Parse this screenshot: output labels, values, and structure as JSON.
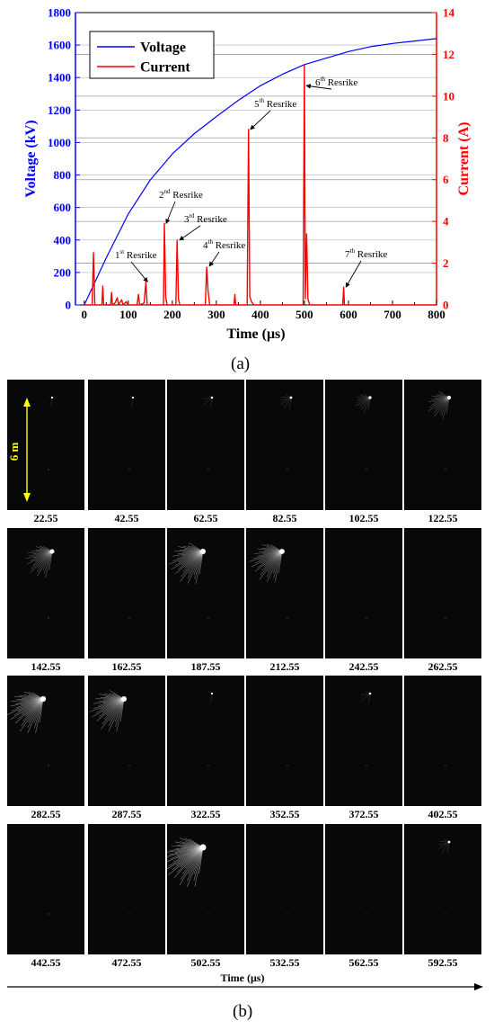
{
  "panel_a": {
    "label": "(a)",
    "label_letter": "a",
    "annotations": [
      {
        "sup": "st",
        "t": 140,
        "i": 1.1
      },
      {
        "sup": "nd",
        "t": 182,
        "i": 3.9
      },
      {
        "sup": "rd",
        "t": 212,
        "i": 3.1
      },
      {
        "sup": "th",
        "t": 280,
        "i": 1.85
      },
      {
        "sup": "th",
        "t": 373,
        "i": 8.4
      },
      {
        "sup": "th",
        "t": 500,
        "i": 10.5
      },
      {
        "sup": "th",
        "t": 590,
        "i": 0.85
      }
    ]
  },
  "chart_data": {
    "type": "line",
    "x": {
      "label": "Time (μs)",
      "range": [
        -20,
        800
      ],
      "ticks": [
        0,
        100,
        200,
        300,
        400,
        500,
        600,
        700,
        800
      ]
    },
    "y_left": {
      "label": "Voltage (kV)",
      "range": [
        0,
        1800
      ],
      "ticks": [
        0,
        200,
        400,
        600,
        800,
        1000,
        1200,
        1400,
        1600,
        1800
      ],
      "color": "#0000ff"
    },
    "y_right": {
      "label": "Current (A)",
      "range": [
        0,
        14
      ],
      "ticks": [
        0,
        2,
        4,
        6,
        8,
        10,
        12,
        14
      ],
      "color": "#ff0000"
    },
    "grid": true,
    "legend": {
      "position": "top-left",
      "entries": [
        "Voltage",
        "Current"
      ]
    },
    "series": [
      {
        "name": "Voltage",
        "axis": "left",
        "color": "#0000ff",
        "points": [
          [
            0,
            0
          ],
          [
            50,
            290
          ],
          [
            100,
            560
          ],
          [
            150,
            770
          ],
          [
            200,
            930
          ],
          [
            250,
            1055
          ],
          [
            300,
            1160
          ],
          [
            350,
            1260
          ],
          [
            400,
            1350
          ],
          [
            450,
            1420
          ],
          [
            500,
            1480
          ],
          [
            550,
            1520
          ],
          [
            600,
            1560
          ],
          [
            650,
            1590
          ],
          [
            700,
            1610
          ],
          [
            750,
            1625
          ],
          [
            800,
            1640
          ]
        ]
      },
      {
        "name": "Current",
        "axis": "right",
        "color": "#ff0000",
        "points": [
          [
            0,
            0
          ],
          [
            18,
            0
          ],
          [
            21,
            2.5
          ],
          [
            24,
            0
          ],
          [
            40,
            0
          ],
          [
            42,
            0.9
          ],
          [
            44,
            0
          ],
          [
            60,
            0
          ],
          [
            62,
            0.6
          ],
          [
            64,
            0
          ],
          [
            70,
            0.1
          ],
          [
            75,
            0.35
          ],
          [
            78,
            0
          ],
          [
            85,
            0.25
          ],
          [
            88,
            0
          ],
          [
            95,
            0.15
          ],
          [
            100,
            0
          ],
          [
            120,
            0
          ],
          [
            123,
            0.5
          ],
          [
            126,
            0
          ],
          [
            136,
            0.1
          ],
          [
            140,
            1.1
          ],
          [
            143,
            0
          ],
          [
            180,
            0
          ],
          [
            182,
            3.9
          ],
          [
            185,
            0.4
          ],
          [
            188,
            0
          ],
          [
            208,
            0
          ],
          [
            211,
            3.1
          ],
          [
            214,
            0.3
          ],
          [
            217,
            0
          ],
          [
            275,
            0
          ],
          [
            278,
            1.8
          ],
          [
            281,
            0.7
          ],
          [
            285,
            0
          ],
          [
            340,
            0
          ],
          [
            342,
            0.5
          ],
          [
            344,
            0
          ],
          [
            370,
            0
          ],
          [
            373,
            8.4
          ],
          [
            376,
            0.4
          ],
          [
            380,
            0.15
          ],
          [
            385,
            0
          ],
          [
            497,
            0
          ],
          [
            500,
            11.5
          ],
          [
            502,
            0.3
          ],
          [
            505,
            3.4
          ],
          [
            508,
            0.3
          ],
          [
            512,
            0
          ],
          [
            587,
            0
          ],
          [
            589,
            0.85
          ],
          [
            591,
            0
          ],
          [
            800,
            0
          ]
        ]
      }
    ],
    "annotation_text": [
      "Resrike",
      "Resrike",
      "Resrike",
      "Resrike",
      "Resrike",
      "Resrike",
      "Resrike"
    ]
  },
  "panel_b": {
    "label": "(b)",
    "label_letter": "b",
    "scale_label": "6 m",
    "axis_label": "Time (μs)",
    "frames": [
      {
        "time": "22.55",
        "b": 0.05
      },
      {
        "time": "42.55",
        "b": 0.05
      },
      {
        "time": "62.55",
        "b": 0.1
      },
      {
        "time": "82.55",
        "b": 0.15
      },
      {
        "time": "102.55",
        "b": 0.25
      },
      {
        "time": "122.55",
        "b": 0.45
      },
      {
        "time": "142.55",
        "b": 0.6
      },
      {
        "time": "162.55",
        "b": 0.03
      },
      {
        "time": "187.55",
        "b": 0.8
      },
      {
        "time": "212.55",
        "b": 0.75
      },
      {
        "time": "242.55",
        "b": 0.02
      },
      {
        "time": "262.55",
        "b": 0.02
      },
      {
        "time": "282.55",
        "b": 0.85
      },
      {
        "time": "287.55",
        "b": 0.8
      },
      {
        "time": "322.55",
        "b": 0.05
      },
      {
        "time": "352.55",
        "b": 0.03
      },
      {
        "time": "372.55",
        "b": 0.1
      },
      {
        "time": "402.55",
        "b": 0.03
      },
      {
        "time": "442.55",
        "b": 0.02
      },
      {
        "time": "472.55",
        "b": 0.02
      },
      {
        "time": "502.55",
        "b": 1.0
      },
      {
        "time": "532.55",
        "b": 0.02
      },
      {
        "time": "562.55",
        "b": 0.03
      },
      {
        "time": "592.55",
        "b": 0.15
      }
    ]
  }
}
